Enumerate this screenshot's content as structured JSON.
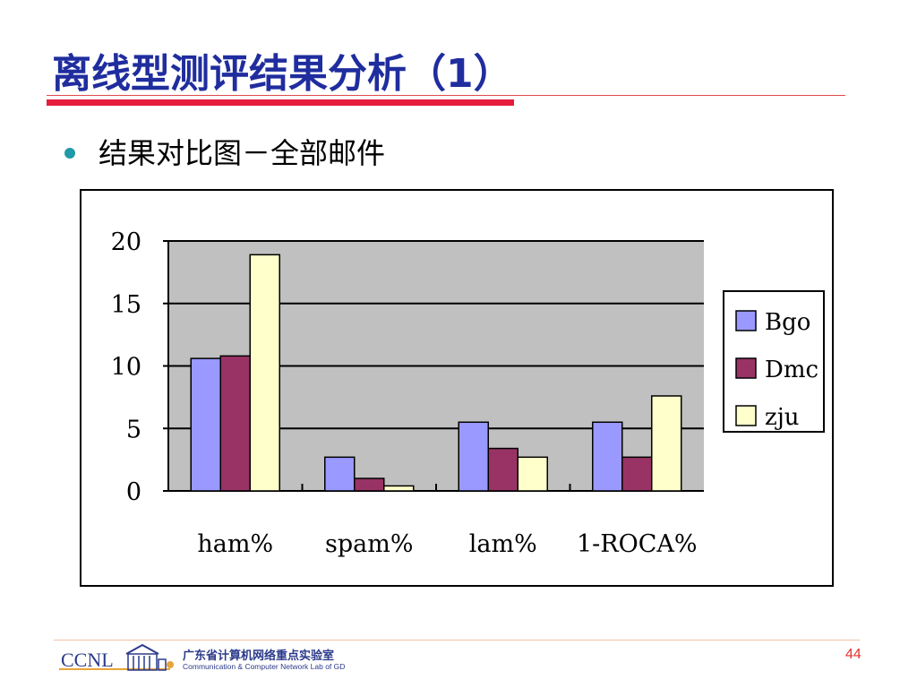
{
  "slide": {
    "title": "离线型测评结果分析（1）",
    "bullet": "结果对比图－全部邮件",
    "page_number": "44"
  },
  "footer": {
    "logo_text": "CCNL",
    "org_cn": "广东省计算机网络重点实验室",
    "org_en": "Communication & Computer Network Lab of GD"
  },
  "colors": {
    "title": "#1f2d9e",
    "accent_red": "#e51c3c",
    "plot_bg": "#c0c0c0",
    "bgo": "#9999ff",
    "dmc": "#993366",
    "zju": "#ffffcc"
  },
  "chart_data": {
    "type": "bar",
    "categories": [
      "ham%",
      "spam%",
      "lam%",
      "1-ROCA%"
    ],
    "series": [
      {
        "name": "Bgo",
        "values": [
          10.6,
          2.7,
          5.5,
          5.5
        ],
        "color": "#9999ff"
      },
      {
        "name": "Dmc",
        "values": [
          10.8,
          1.0,
          3.4,
          2.7
        ],
        "color": "#993366"
      },
      {
        "name": "zju",
        "values": [
          18.9,
          0.4,
          2.7,
          7.6
        ],
        "color": "#ffffcc"
      }
    ],
    "y_ticks": [
      "0",
      "5",
      "10",
      "15",
      "20"
    ],
    "ylim": [
      0,
      20
    ],
    "grid": true,
    "legend": "right"
  }
}
